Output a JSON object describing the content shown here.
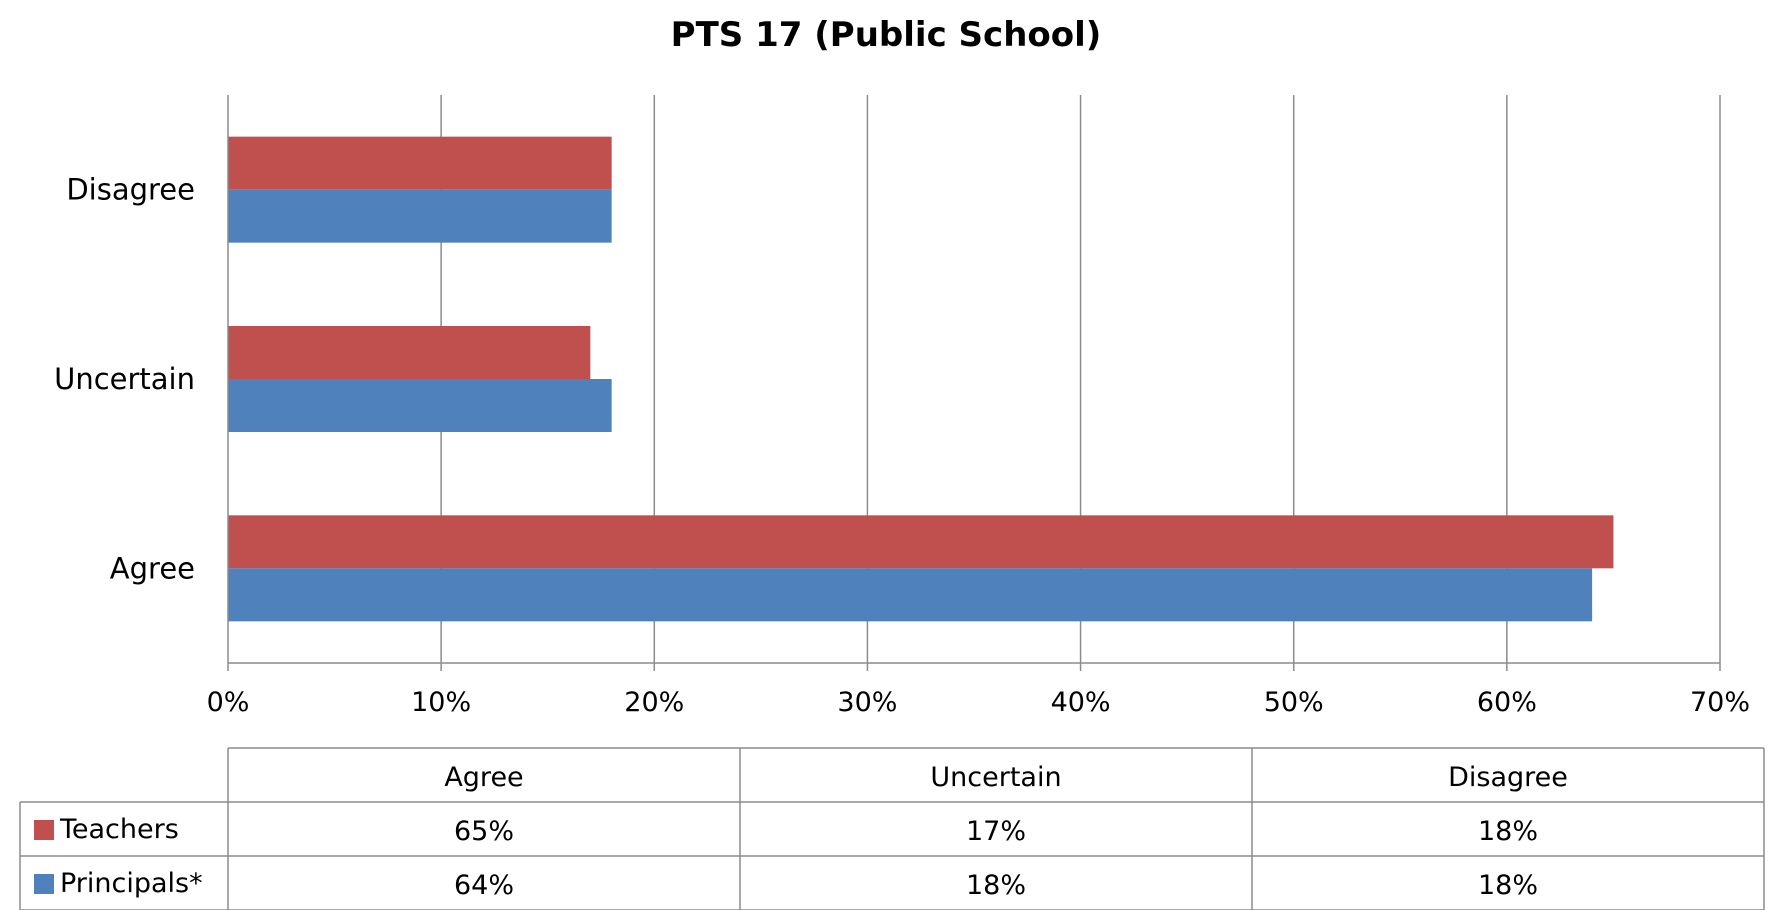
{
  "chart_data": {
    "type": "bar",
    "orientation": "horizontal",
    "title": "PTS 17 (Public School)",
    "categories": [
      "Agree",
      "Uncertain",
      "Disagree"
    ],
    "series": [
      {
        "name": "Teachers",
        "color": "#C0504D",
        "values": [
          65,
          17,
          18
        ],
        "labels": [
          "65%",
          "17%",
          "18%"
        ]
      },
      {
        "name": "Principals*",
        "color": "#4F81BD",
        "values": [
          64,
          18,
          18
        ],
        "labels": [
          "64%",
          "18%",
          "18%"
        ]
      }
    ],
    "xlim": [
      0,
      70
    ],
    "xticks": [
      0,
      10,
      20,
      30,
      40,
      50,
      60,
      70
    ],
    "xtick_labels": [
      "0%",
      "10%",
      "20%",
      "30%",
      "40%",
      "50%",
      "60%",
      "70%"
    ],
    "grid": true,
    "legend": "data-table"
  }
}
